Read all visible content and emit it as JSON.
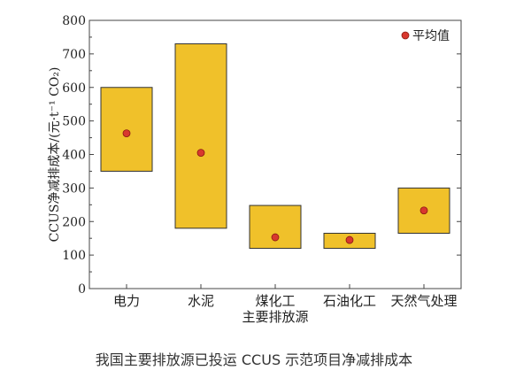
{
  "caption": "我国主要排放源已投运 CCUS 示范项目净减排成本",
  "chart_data": {
    "type": "floating-bar",
    "title": "",
    "xlabel": "主要排放源",
    "ylabel": "CCUS净减排成本/(元·t⁻¹ CO₂)",
    "ylim": [
      0,
      800
    ],
    "yticks": [
      0,
      100,
      200,
      300,
      400,
      500,
      600,
      700,
      800
    ],
    "categories": [
      "电力",
      "水泥",
      "煤化工",
      "石油化工",
      "天然气处理"
    ],
    "ranges": [
      [
        350,
        600
      ],
      [
        180,
        730
      ],
      [
        120,
        248
      ],
      [
        120,
        165
      ],
      [
        165,
        300
      ]
    ],
    "means": [
      463,
      405,
      153,
      145,
      233
    ],
    "legend": {
      "label": "平均值",
      "position": "top-right"
    },
    "colors": {
      "bar": "#F0C12A",
      "bar_edge": "#333333",
      "mean": "#D8382E",
      "mean_edge": "#8B1A12",
      "axis": "#444444"
    },
    "grid": false
  }
}
